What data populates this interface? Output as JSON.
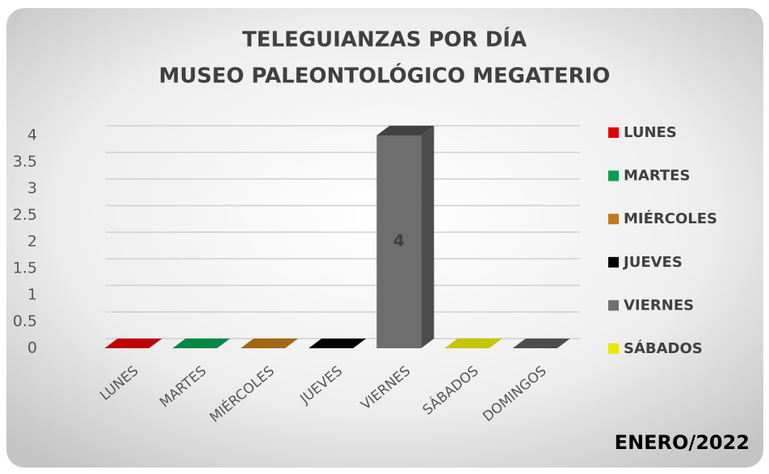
{
  "chart_data": {
    "type": "bar3d",
    "title": [
      "TELEGUIANZAS POR DÍA",
      "MUSEO PALEONTOLÓGICO MEGATERIO"
    ],
    "categories": [
      "LUNES",
      "MARTES",
      "MIÉRCOLES",
      "JUEVES",
      "VIERNES",
      "SÁBADOS",
      "DOMINGOS"
    ],
    "values": [
      0,
      0,
      0,
      0,
      4,
      0,
      0
    ],
    "colors": [
      "#e00000",
      "#00a050",
      "#c07818",
      "#000000",
      "#6e6e6e",
      "#e8e800",
      "#5a5a5a"
    ],
    "legend": [
      "LUNES",
      "MARTES",
      "MIÉRCOLES",
      "JUEVES",
      "VIERNES",
      "SÁBADOS"
    ],
    "ylim": [
      0,
      4
    ],
    "yticks": [
      0,
      0.5,
      1,
      1.5,
      2,
      2.5,
      3,
      3.5,
      4
    ],
    "grid": true,
    "annotation": "ENERO/2022"
  }
}
